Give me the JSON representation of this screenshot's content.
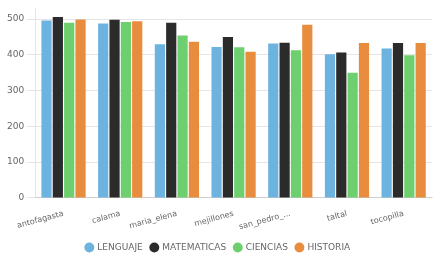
{
  "chart_data": {
    "type": "bar",
    "categories": [
      "antofagasta",
      "calama",
      "maria_elena",
      "mejillones",
      "san_pedro_...",
      "taltal",
      "tocopilla"
    ],
    "series": [
      {
        "name": "LENGUAJE",
        "color": "#6db3e0",
        "values": [
          496,
          488,
          430,
          422,
          432,
          402,
          418
        ]
      },
      {
        "name": "MATEMATICAS",
        "color": "#2b2b2b",
        "values": [
          506,
          498,
          490,
          450,
          434,
          407,
          433
        ]
      },
      {
        "name": "CIENCIAS",
        "color": "#6dcf6d",
        "values": [
          490,
          492,
          454,
          421,
          413,
          350,
          399
        ]
      },
      {
        "name": "HISTORIA",
        "color": "#e88c3e",
        "values": [
          499,
          494,
          437,
          409,
          484,
          433,
          433
        ]
      }
    ],
    "ylim": [
      0,
      530
    ],
    "yticks": [
      0,
      100,
      200,
      300,
      400,
      500
    ],
    "grid": true,
    "legend": "bottom"
  }
}
